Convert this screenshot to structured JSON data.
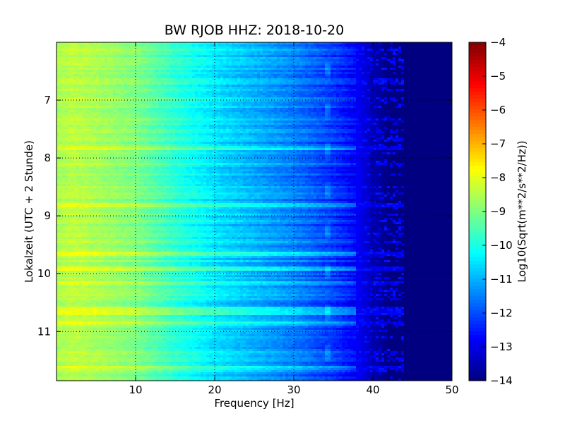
{
  "chart_data": {
    "type": "heatmap",
    "title": "BW RJOB HHZ: 2018-10-20",
    "xlabel": "Frequency [Hz]",
    "ylabel": "Lokalzeit (UTC + 2 Stunde)",
    "colorbar_label": "Log10(Sqrt(m**2/s**2/Hz))",
    "x_range": [
      0,
      50
    ],
    "y_range": [
      6.0,
      11.85
    ],
    "y_inverted": true,
    "x_ticks": [
      10,
      20,
      30,
      40,
      50
    ],
    "x_tick_labels": [
      "10",
      "20",
      "30",
      "40",
      "50"
    ],
    "y_ticks": [
      7,
      8,
      9,
      10,
      11
    ],
    "y_tick_labels": [
      "7",
      "8",
      "9",
      "10",
      "11"
    ],
    "colorbar_range": [
      -14,
      -4
    ],
    "colorbar_ticks": [
      -4,
      -5,
      -6,
      -7,
      -8,
      -9,
      -10,
      -11,
      -12,
      -13,
      -14
    ],
    "colorbar_tick_labels": [
      "−4",
      "−5",
      "−6",
      "−7",
      "−8",
      "−9",
      "−10",
      "−11",
      "−12",
      "−13",
      "−14"
    ],
    "colormap": "jet",
    "grid": "on",
    "grid_style": "dotted",
    "value_profile": {
      "frequency_hz": [
        0,
        2,
        5,
        10,
        15,
        20,
        25,
        30,
        35,
        38,
        40,
        42,
        50
      ],
      "log10_amplitude": [
        -8.6,
        -8.4,
        -8.6,
        -9.0,
        -9.8,
        -10.5,
        -11.0,
        -11.5,
        -12.2,
        -12.8,
        -13.5,
        -14,
        -14
      ]
    },
    "noise_bursts_local_time": [
      7.8,
      8.8,
      9.65,
      9.9,
      10.15,
      10.6,
      10.65,
      10.85,
      11.6
    ]
  }
}
